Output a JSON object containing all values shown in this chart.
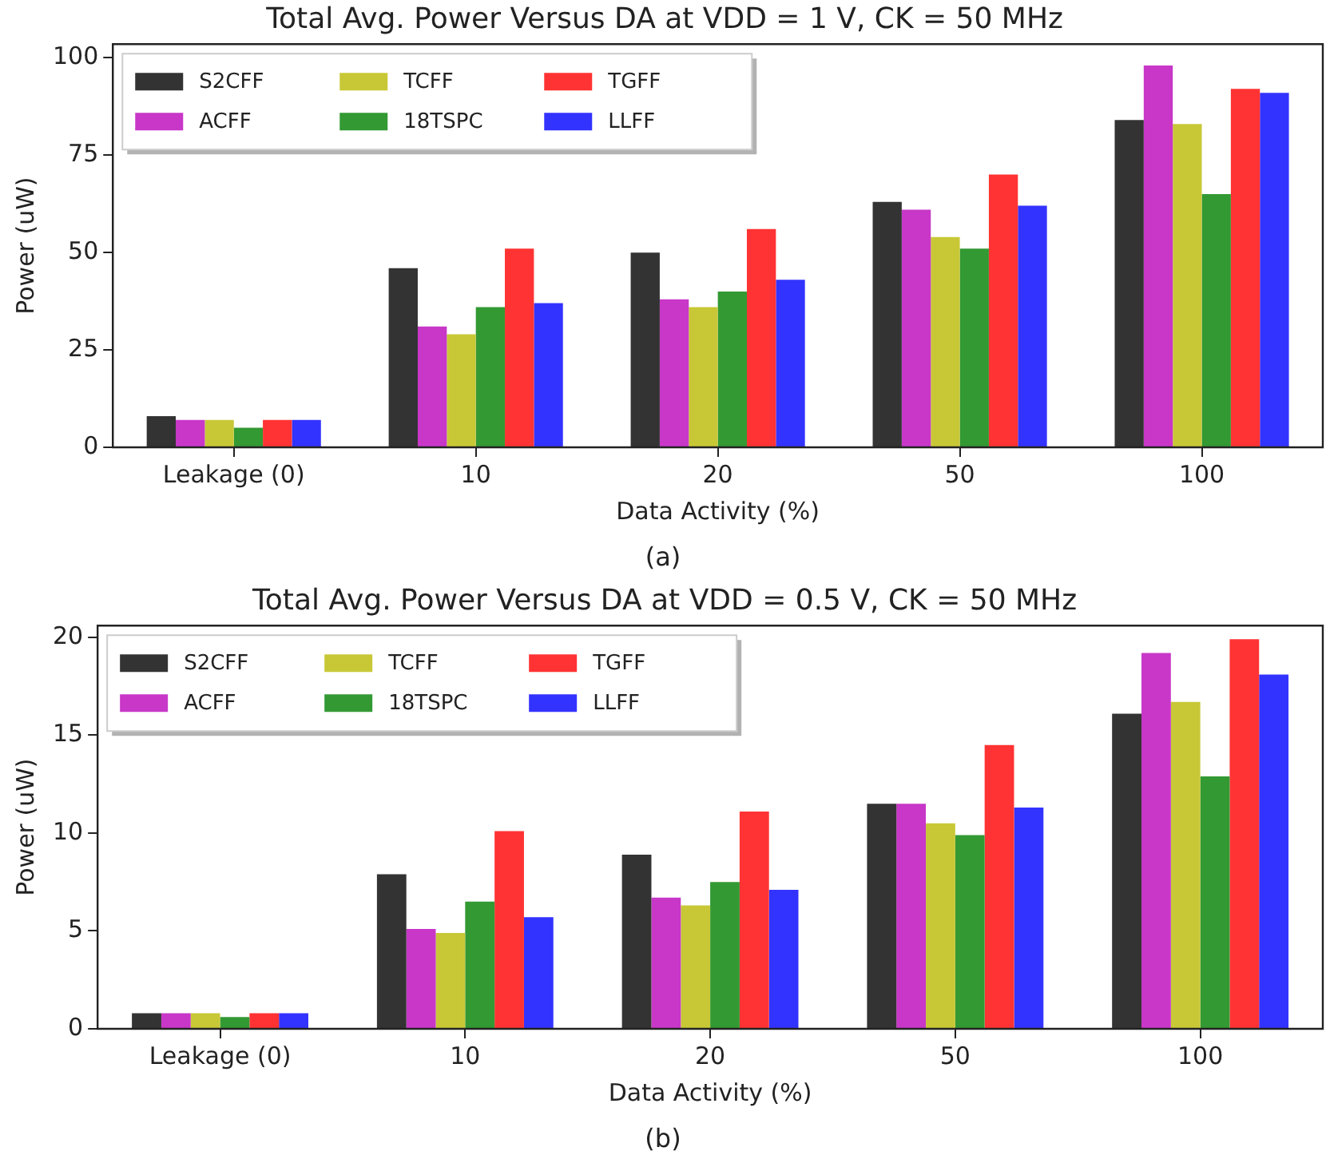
{
  "chart_data": [
    {
      "type": "bar",
      "title": "Total Avg. Power Versus DA at VDD = 1 V, CK = 50 MHz",
      "xlabel": "Data Activity (%)",
      "ylabel": "Power (uW)",
      "categories": [
        "Leakage (0)",
        "10",
        "20",
        "50",
        "100"
      ],
      "series": [
        {
          "name": "S2CFF",
          "color": "#333333",
          "values": [
            8,
            46,
            50,
            63,
            84
          ]
        },
        {
          "name": "ACFF",
          "color": "#c837c8",
          "values": [
            7,
            31,
            38,
            61,
            98
          ]
        },
        {
          "name": "TCFF",
          "color": "#c8c837",
          "values": [
            7,
            29,
            36,
            54,
            83
          ]
        },
        {
          "name": "18TSPC",
          "color": "#339933",
          "values": [
            5,
            36,
            40,
            51,
            65
          ]
        },
        {
          "name": "TGFF",
          "color": "#ff3333",
          "values": [
            7,
            51,
            56,
            70,
            92
          ]
        },
        {
          "name": "LLFF",
          "color": "#3333ff",
          "values": [
            7,
            37,
            43,
            62,
            91
          ]
        }
      ],
      "ylim": [
        0,
        103.5
      ],
      "yticks": [
        0,
        25,
        50,
        75,
        100
      ],
      "grid": false,
      "legend": "top left",
      "annotations": [
        "(a)"
      ]
    },
    {
      "type": "bar",
      "title": "Total Avg. Power Versus DA at VDD = 0.5 V, CK = 50 MHz",
      "xlabel": "Data Activity (%)",
      "ylabel": "Power (uW)",
      "categories": [
        "Leakage (0)",
        "10",
        "20",
        "50",
        "100"
      ],
      "series": [
        {
          "name": "S2CFF",
          "color": "#333333",
          "values": [
            0.8,
            7.9,
            8.9,
            11.5,
            16.1
          ]
        },
        {
          "name": "ACFF",
          "color": "#c837c8",
          "values": [
            0.8,
            5.1,
            6.7,
            11.5,
            19.2
          ]
        },
        {
          "name": "TCFF",
          "color": "#c8c837",
          "values": [
            0.8,
            4.9,
            6.3,
            10.5,
            16.7
          ]
        },
        {
          "name": "18TSPC",
          "color": "#339933",
          "values": [
            0.6,
            6.5,
            7.5,
            9.9,
            12.9
          ]
        },
        {
          "name": "TGFF",
          "color": "#ff3333",
          "values": [
            0.8,
            10.1,
            11.1,
            14.5,
            19.9
          ]
        },
        {
          "name": "LLFF",
          "color": "#3333ff",
          "values": [
            0.8,
            5.7,
            7.1,
            11.3,
            18.1
          ]
        }
      ],
      "ylim": [
        0,
        20.6
      ],
      "yticks": [
        0,
        5,
        10,
        15,
        20
      ],
      "grid": false,
      "legend": "top left",
      "annotations": [
        "(b)"
      ]
    }
  ]
}
